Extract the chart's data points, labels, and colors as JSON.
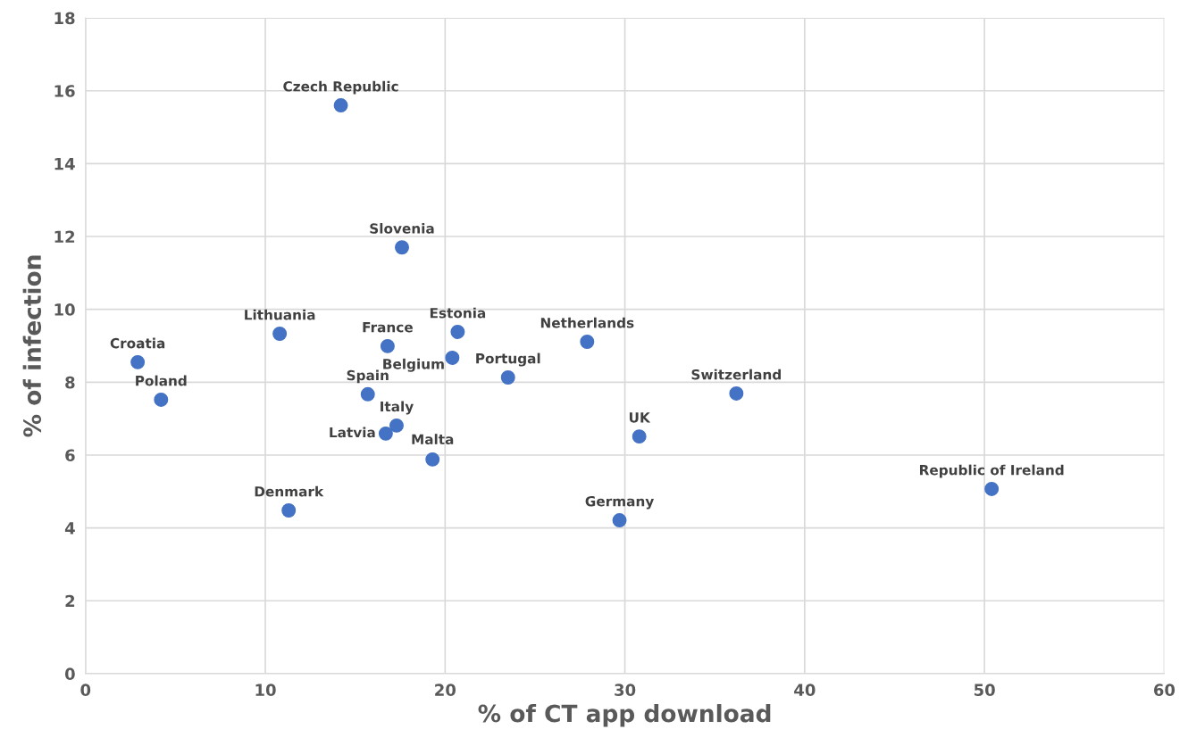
{
  "chart_data": {
    "type": "scatter",
    "xlabel": "% of CT app download",
    "ylabel": "% of infection",
    "xlim": [
      0,
      60
    ],
    "xticks": [
      0,
      10,
      20,
      30,
      40,
      50,
      60
    ],
    "ylim": [
      0,
      18
    ],
    "yticks": [
      0,
      2,
      4,
      6,
      8,
      10,
      12,
      14,
      16,
      18
    ],
    "grid": true,
    "marker": "circle",
    "legend": false,
    "series": [
      {
        "color": "#4472c4",
        "x": [
          14.2,
          17.6,
          10.8,
          16.8,
          20.7,
          20.4,
          27.9,
          23.5,
          2.9,
          4.2,
          15.7,
          17.3,
          16.7,
          19.3,
          36.2,
          30.8,
          11.3,
          29.7,
          50.4
        ],
        "values": [
          15.6,
          11.7,
          9.33,
          8.99,
          9.38,
          8.67,
          9.11,
          8.13,
          8.55,
          7.52,
          7.67,
          6.81,
          6.59,
          5.88,
          7.69,
          6.51,
          4.48,
          4.21,
          5.07
        ]
      }
    ],
    "annotations": [
      {
        "text": "Czech Republic",
        "x": 14.2,
        "y": 15.6
      },
      {
        "text": "Slovenia",
        "x": 17.6,
        "y": 11.7
      },
      {
        "text": "Lithuania",
        "x": 10.8,
        "y": 9.33
      },
      {
        "text": "France",
        "x": 16.8,
        "y": 8.99
      },
      {
        "text": "Estonia",
        "x": 20.7,
        "y": 9.38
      },
      {
        "text": "Belgium",
        "x": 20.4,
        "y": 8.67
      },
      {
        "text": "Netherlands",
        "x": 27.9,
        "y": 9.11
      },
      {
        "text": "Portugal",
        "x": 23.5,
        "y": 8.13
      },
      {
        "text": "Croatia",
        "x": 2.9,
        "y": 8.55
      },
      {
        "text": "Poland",
        "x": 4.2,
        "y": 7.52
      },
      {
        "text": "Spain",
        "x": 15.7,
        "y": 7.67
      },
      {
        "text": "Italy",
        "x": 17.3,
        "y": 6.81
      },
      {
        "text": "Latvia",
        "x": 16.7,
        "y": 6.59
      },
      {
        "text": "Malta",
        "x": 19.3,
        "y": 5.88
      },
      {
        "text": "Switzerland",
        "x": 36.2,
        "y": 7.69
      },
      {
        "text": "UK",
        "x": 30.8,
        "y": 6.51
      },
      {
        "text": "Denmark",
        "x": 11.3,
        "y": 4.48
      },
      {
        "text": "Germany",
        "x": 29.7,
        "y": 4.21
      },
      {
        "text": "Republic of Ireland",
        "x": 50.4,
        "y": 5.07
      }
    ]
  }
}
